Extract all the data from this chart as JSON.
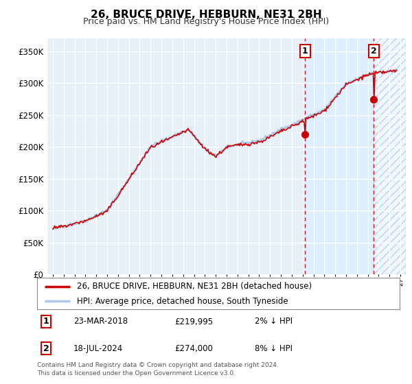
{
  "title": "26, BRUCE DRIVE, HEBBURN, NE31 2BH",
  "subtitle": "Price paid vs. HM Land Registry's House Price Index (HPI)",
  "legend_line1": "26, BRUCE DRIVE, HEBBURN, NE31 2BH (detached house)",
  "legend_line2": "HPI: Average price, detached house, South Tyneside",
  "annotation1_date": "23-MAR-2018",
  "annotation1_price_str": "£219,995",
  "annotation1_price": 219995,
  "annotation1_hpi": "2% ↓ HPI",
  "annotation1_year": 2018.21,
  "annotation2_date": "18-JUL-2024",
  "annotation2_price_str": "£274,000",
  "annotation2_price": 274000,
  "annotation2_hpi": "8% ↓ HPI",
  "annotation2_year": 2024.54,
  "footer": "Contains HM Land Registry data © Crown copyright and database right 2024.\nThis data is licensed under the Open Government Licence v3.0.",
  "hpi_color": "#aac8e8",
  "price_color": "#cc0000",
  "dashed_line_color": "#cc0000",
  "background_color": "#ddeeff",
  "plot_bg": "#e8f0f8",
  "ylim": [
    0,
    370000
  ],
  "yticks": [
    0,
    50000,
    100000,
    150000,
    200000,
    250000,
    300000,
    350000
  ],
  "xstart": 1995,
  "xend": 2027
}
